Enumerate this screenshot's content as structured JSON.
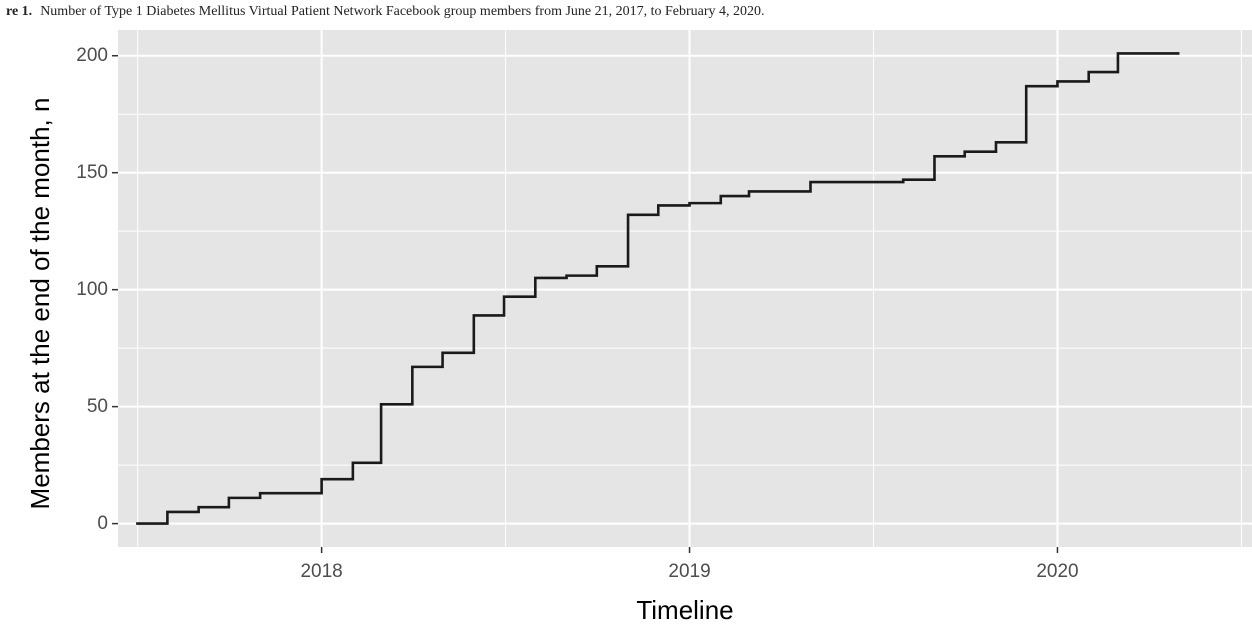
{
  "caption": {
    "prefix": "re 1.",
    "text": "Number of Type 1 Diabetes Mellitus Virtual Patient Network Facebook group members from June 21, 2017, to February 4, 2020."
  },
  "chart_data": {
    "type": "line",
    "step": true,
    "title": "",
    "xlabel": "Timeline",
    "ylabel": "Members at the end of the month, n",
    "xlim": [
      "2017-06-13",
      "2020-07-12"
    ],
    "ylim": [
      -10,
      211
    ],
    "x_ticks": [
      "2018-01-01",
      "2019-01-01",
      "2020-01-01"
    ],
    "x_tick_labels": [
      "2018",
      "2019",
      "2020"
    ],
    "y_ticks": [
      0,
      50,
      100,
      150,
      200
    ],
    "y_tick_labels": [
      "0",
      "50",
      "100",
      "150",
      "200"
    ],
    "grid": true,
    "legend": "none",
    "colors": {
      "panel": "#e5e5e5",
      "grid": "#ffffff",
      "line": "#1a1a1a"
    },
    "series": [
      {
        "points": [
          {
            "x": "2017-07-01",
            "y": 0
          },
          {
            "x": "2017-08-01",
            "y": 5
          },
          {
            "x": "2017-09-01",
            "y": 7
          },
          {
            "x": "2017-10-01",
            "y": 11
          },
          {
            "x": "2017-11-01",
            "y": 13
          },
          {
            "x": "2017-12-01",
            "y": 13
          },
          {
            "x": "2018-01-01",
            "y": 19
          },
          {
            "x": "2018-02-01",
            "y": 26
          },
          {
            "x": "2018-03-01",
            "y": 51
          },
          {
            "x": "2018-04-01",
            "y": 67
          },
          {
            "x": "2018-05-01",
            "y": 73
          },
          {
            "x": "2018-06-01",
            "y": 89
          },
          {
            "x": "2018-07-01",
            "y": 97
          },
          {
            "x": "2018-08-01",
            "y": 105
          },
          {
            "x": "2018-09-01",
            "y": 106
          },
          {
            "x": "2018-10-01",
            "y": 110
          },
          {
            "x": "2018-11-01",
            "y": 132
          },
          {
            "x": "2018-12-01",
            "y": 136
          },
          {
            "x": "2019-01-01",
            "y": 137
          },
          {
            "x": "2019-02-01",
            "y": 140
          },
          {
            "x": "2019-03-01",
            "y": 142
          },
          {
            "x": "2019-04-01",
            "y": 142
          },
          {
            "x": "2019-05-01",
            "y": 146
          },
          {
            "x": "2019-06-01",
            "y": 146
          },
          {
            "x": "2019-07-01",
            "y": 146
          },
          {
            "x": "2019-08-01",
            "y": 147
          },
          {
            "x": "2019-09-01",
            "y": 157
          },
          {
            "x": "2019-10-01",
            "y": 159
          },
          {
            "x": "2019-11-01",
            "y": 163
          },
          {
            "x": "2019-12-01",
            "y": 187
          },
          {
            "x": "2020-01-01",
            "y": 189
          },
          {
            "x": "2020-02-01",
            "y": 193
          },
          {
            "x": "2020-03-01",
            "y": 201
          },
          {
            "x": "2020-05-01",
            "y": 201
          }
        ]
      }
    ]
  }
}
